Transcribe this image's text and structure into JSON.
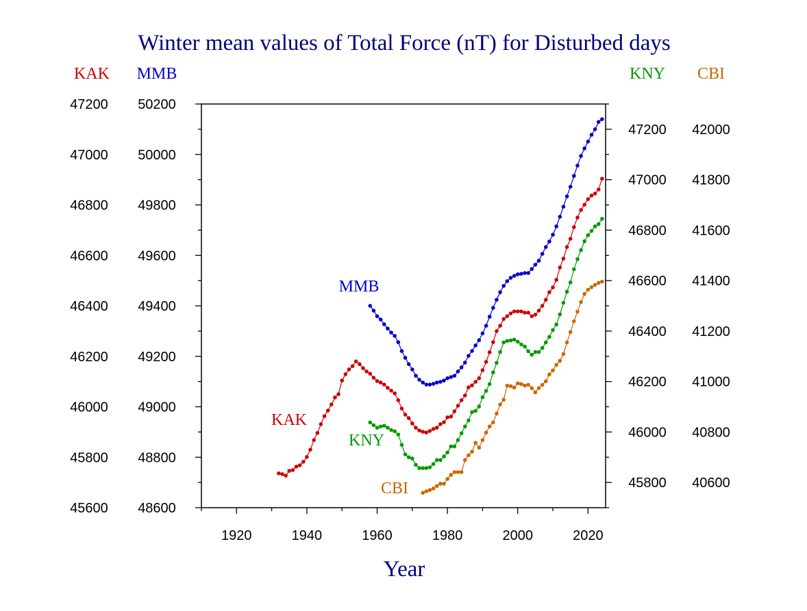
{
  "chart_data": {
    "type": "line",
    "title": "Winter mean values of Total Force (nT) for Disturbed days",
    "xlabel": "Year",
    "xlim": [
      1910,
      2025
    ],
    "xticks": [
      1920,
      1940,
      1960,
      1980,
      2000,
      2020
    ],
    "grid": false,
    "axes": {
      "left_outer": {
        "name": "KAK",
        "range": [
          45600,
          47200
        ],
        "ticks": [
          45600,
          45800,
          46000,
          46200,
          46400,
          46600,
          46800,
          47000,
          47200
        ]
      },
      "left_inner": {
        "name": "MMB",
        "range": [
          48600,
          50200
        ],
        "ticks": [
          48600,
          48800,
          49000,
          49200,
          49400,
          49600,
          49800,
          50000,
          50200
        ]
      },
      "right_inner": {
        "name": "KNY",
        "range": [
          45700,
          47300
        ],
        "ticks": [
          45800,
          46000,
          46200,
          46400,
          46600,
          46800,
          47000,
          47200
        ]
      },
      "right_outer": {
        "name": "CBI",
        "range": [
          40500,
          42100
        ],
        "ticks": [
          40600,
          40800,
          41000,
          41200,
          41400,
          41600,
          41800,
          42000
        ]
      }
    },
    "colors": {
      "title": "#000080",
      "KAK": "#cc0000",
      "MMB": "#0000cc",
      "KNY": "#009900",
      "CBI": "#cc6600"
    },
    "series": [
      {
        "name": "KAK",
        "axis": "left_outer",
        "start_year": 1932,
        "values": [
          45736,
          45733,
          45727,
          45746,
          45749,
          45763,
          45768,
          45782,
          45801,
          45830,
          45868,
          45896,
          45931,
          45963,
          45985,
          46009,
          46037,
          46050,
          46104,
          46129,
          46148,
          46161,
          46180,
          46169,
          46153,
          46140,
          46131,
          46115,
          46102,
          46096,
          46088,
          46075,
          46064,
          46053,
          46026,
          45993,
          45969,
          45955,
          45934,
          45917,
          45906,
          45901,
          45898,
          45904,
          45912,
          45917,
          45931,
          45939,
          45958,
          45961,
          45982,
          46004,
          46026,
          46045,
          46077,
          46085,
          46099,
          46113,
          46145,
          46178,
          46216,
          46256,
          46300,
          46321,
          46348,
          46359,
          46370,
          46378,
          46378,
          46378,
          46373,
          46373,
          46359,
          46365,
          46381,
          46400,
          46424,
          46454,
          46473,
          46503,
          46552,
          46587,
          46633,
          46666,
          46712,
          46750,
          46780,
          46801,
          46823,
          46837,
          46845,
          46861,
          46904
        ]
      },
      {
        "name": "MMB",
        "axis": "left_inner",
        "start_year": 1958,
        "values": [
          49400,
          49381,
          49359,
          49346,
          49327,
          49310,
          49294,
          49281,
          49256,
          49221,
          49194,
          49169,
          49148,
          49123,
          49107,
          49096,
          49088,
          49088,
          49091,
          49096,
          49099,
          49104,
          49113,
          49118,
          49123,
          49140,
          49156,
          49175,
          49202,
          49221,
          49243,
          49264,
          49291,
          49321,
          49357,
          49392,
          49424,
          49454,
          49479,
          49498,
          49511,
          49519,
          49525,
          49527,
          49530,
          49530,
          49546,
          49563,
          49579,
          49606,
          49633,
          49655,
          49682,
          49715,
          49753,
          49793,
          49834,
          49872,
          49915,
          49956,
          49994,
          50024,
          50051,
          50078,
          50100,
          50129,
          50140
        ]
      },
      {
        "name": "KNY",
        "axis": "right_inner",
        "start_year": 1958,
        "values": [
          46038,
          46027,
          46017,
          46022,
          46025,
          46017,
          46008,
          46003,
          45990,
          45949,
          45911,
          45900,
          45895,
          45870,
          45857,
          45857,
          45857,
          45860,
          45873,
          45889,
          45889,
          45903,
          45919,
          45943,
          45943,
          45968,
          45995,
          46022,
          46046,
          46079,
          46084,
          46101,
          46138,
          46163,
          46190,
          46236,
          46274,
          46317,
          46355,
          46361,
          46363,
          46366,
          46358,
          46347,
          46339,
          46320,
          46306,
          46317,
          46317,
          46333,
          46355,
          46377,
          46404,
          46426,
          46466,
          46512,
          46556,
          46593,
          46645,
          46685,
          46721,
          46756,
          46780,
          46797,
          46815,
          46824,
          46845
        ]
      },
      {
        "name": "CBI",
        "axis": "right_outer",
        "start_year": 1973,
        "values": [
          40559,
          40565,
          40570,
          40576,
          40586,
          40595,
          40595,
          40614,
          40630,
          40641,
          40641,
          40641,
          40689,
          40708,
          40722,
          40757,
          40738,
          40768,
          40798,
          40822,
          40838,
          40873,
          40909,
          40928,
          40984,
          40982,
          40976,
          40993,
          40990,
          40984,
          40987,
          40974,
          40957,
          40974,
          40987,
          41001,
          41028,
          41044,
          41066,
          41082,
          41109,
          41155,
          41196,
          41239,
          41277,
          41315,
          41347,
          41364,
          41374,
          41383,
          41391,
          41396
        ]
      }
    ]
  }
}
